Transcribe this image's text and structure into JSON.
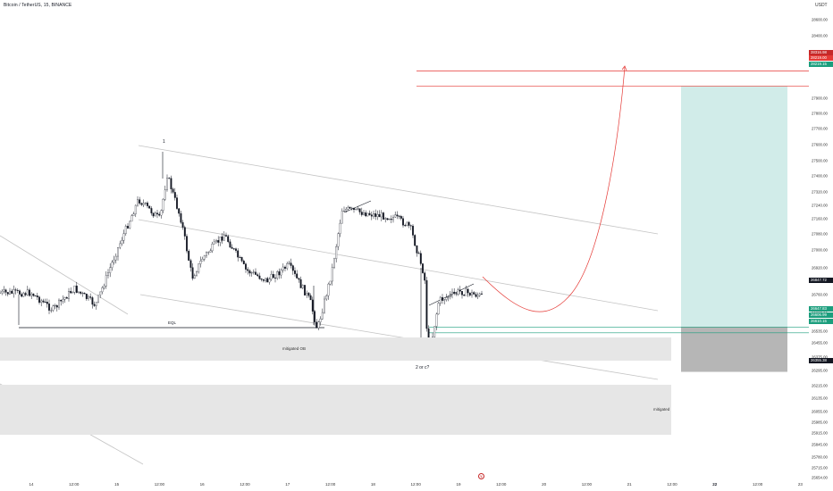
{
  "header": {
    "symbol": "Bitcoin / TetherUS, 15, BINANCE"
  },
  "zones": {
    "mitigated_ob": "mitigated OB",
    "mitigated": "mitigated"
  },
  "annotations": {
    "wave_1": "1",
    "wave_2": "2 or c?",
    "eql": "EQL",
    "wave_a": "a"
  },
  "price_axis": {
    "unit": "USDT",
    "ticks": [
      "28600.00",
      "28400.00",
      "28260.00",
      "28100.00",
      "27900.00",
      "27800.00",
      "27700.00",
      "27600.00",
      "27500.00",
      "27400.00",
      "27320.00",
      "27240.00",
      "27160.00",
      "27080.00",
      "27000.00",
      "26920.00",
      "26760.00",
      "26695.00",
      "26535.00",
      "26455.00",
      "26375.00",
      "26295.00",
      "26215.00",
      "26135.00",
      "26055.00",
      "25985.00",
      "25915.00",
      "25845.00",
      "25780.00",
      "25715.00",
      "25654.00"
    ],
    "labels": [
      {
        "text": "28316.98",
        "color": "#c62828"
      },
      {
        "text": "28219.00",
        "color": "#e53935"
      },
      {
        "text": "28219.15",
        "color": "#1b9e7d"
      },
      {
        "text": "26847.72",
        "color": "#131722"
      },
      {
        "text": "26647.83",
        "color": "#1b9e7d"
      },
      {
        "text": "26606.99",
        "color": "#1b9e7d"
      },
      {
        "text": "26610.15",
        "color": "#1b9e7d"
      },
      {
        "text": "26355.38",
        "color": "#131722"
      }
    ]
  },
  "time_axis": {
    "ticks": [
      {
        "label": "14",
        "bold": false
      },
      {
        "label": "12:00",
        "bold": false
      },
      {
        "label": "15",
        "bold": false
      },
      {
        "label": "12:00",
        "bold": false
      },
      {
        "label": "16",
        "bold": false
      },
      {
        "label": "12:00",
        "bold": false
      },
      {
        "label": "17",
        "bold": false
      },
      {
        "label": "12:00",
        "bold": false
      },
      {
        "label": "18",
        "bold": false
      },
      {
        "label": "12:00",
        "bold": false
      },
      {
        "label": "19",
        "bold": false
      },
      {
        "label": "12:00",
        "bold": false
      },
      {
        "label": "20",
        "bold": false
      },
      {
        "label": "12:00",
        "bold": false
      },
      {
        "label": "21",
        "bold": false
      },
      {
        "label": "12:00",
        "bold": false
      },
      {
        "label": "22",
        "bold": true
      },
      {
        "label": "12:00",
        "bold": false
      },
      {
        "label": "23",
        "bold": false
      }
    ]
  },
  "colors": {
    "up": "#131722",
    "down": "#131722",
    "trendline": "#c4c4c4",
    "projection": "#e53935",
    "target_zone": "#b2dfdb",
    "stop_zone": "#9e9e9e"
  },
  "chart_data": {
    "type": "candlestick",
    "symbol": "Bitcoin / TetherUS",
    "timeframe": "15",
    "exchange": "BINANCE",
    "y_unit": "USDT",
    "ylim": [
      25654,
      28600
    ],
    "x_start": "14",
    "x_end": "23",
    "price_path": [
      {
        "x": "14 00:00",
        "y": 26870
      },
      {
        "x": "14 06:00",
        "y": 26760
      },
      {
        "x": "14 12:00",
        "y": 26900
      },
      {
        "x": "14 18:00",
        "y": 26790
      },
      {
        "x": "15 00:00",
        "y": 27150
      },
      {
        "x": "15 06:00",
        "y": 27480
      },
      {
        "x": "15 12:00",
        "y": 27350
      },
      {
        "x": "15 14:00",
        "y": 27640
      },
      {
        "x": "15 18:00",
        "y": 27340
      },
      {
        "x": "15 21:00",
        "y": 26970
      },
      {
        "x": "16 00:00",
        "y": 27100
      },
      {
        "x": "16 06:00",
        "y": 27250
      },
      {
        "x": "16 12:00",
        "y": 27020
      },
      {
        "x": "16 18:00",
        "y": 26950
      },
      {
        "x": "17 00:00",
        "y": 27050
      },
      {
        "x": "17 06:00",
        "y": 26820
      },
      {
        "x": "17 08:00",
        "y": 26630
      },
      {
        "x": "17 12:00",
        "y": 27000
      },
      {
        "x": "17 15:00",
        "y": 27420
      },
      {
        "x": "18 00:00",
        "y": 27380
      },
      {
        "x": "18 06:00",
        "y": 27360
      },
      {
        "x": "18 10:00",
        "y": 27300
      },
      {
        "x": "18 14:00",
        "y": 26980
      },
      {
        "x": "18 15:00",
        "y": 26430
      },
      {
        "x": "18 18:00",
        "y": 26820
      },
      {
        "x": "19 00:00",
        "y": 26880
      },
      {
        "x": "19 06:00",
        "y": 26850
      }
    ],
    "levels": {
      "stop_high": 28316.98,
      "target": 28219.15,
      "entry": 26647.83,
      "current": 26847.72,
      "stop": 26355.38
    },
    "annotations": [
      "1",
      "2 or c?",
      "EQL",
      "mitigated OB",
      "mitigated"
    ]
  }
}
